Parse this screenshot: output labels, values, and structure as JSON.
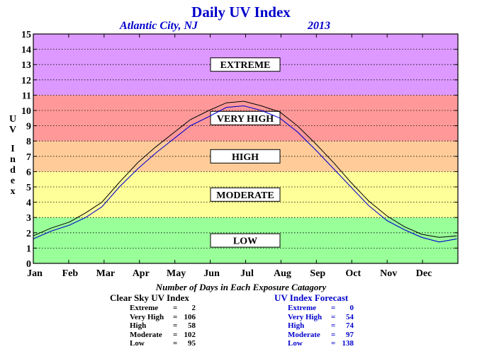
{
  "chart_data": {
    "type": "line",
    "title": "Daily UV Index",
    "subtitle_location": "Atlantic City, NJ",
    "subtitle_year": "2013",
    "ylabel": "UV Index",
    "xlabel": "",
    "ylim": [
      0,
      15
    ],
    "yticks": [
      "0",
      "1",
      "2",
      "3",
      "4",
      "5",
      "6",
      "7",
      "8",
      "9",
      "10",
      "11",
      "12",
      "13",
      "14",
      "15"
    ],
    "months": [
      "Jan",
      "Feb",
      "Mar",
      "Apr",
      "May",
      "Jun",
      "Jul",
      "Aug",
      "Sep",
      "Oct",
      "Nov",
      "Dec"
    ],
    "grid": true,
    "bands": [
      {
        "label": "LOW",
        "from": 0,
        "to": 3,
        "color": "#99ff99"
      },
      {
        "label": "MODERATE",
        "from": 3,
        "to": 6,
        "color": "#ffff99"
      },
      {
        "label": "HIGH",
        "from": 6,
        "to": 8,
        "color": "#ffcc99"
      },
      {
        "label": "VERY HIGH",
        "from": 8,
        "to": 11,
        "color": "#ff9999"
      },
      {
        "label": "EXTREME",
        "from": 11,
        "to": 15,
        "color": "#dd99ff"
      }
    ],
    "series": [
      {
        "name": "Clear Sky UV Index",
        "color": "#000000",
        "points": [
          [
            0,
            1.8
          ],
          [
            15,
            2.3
          ],
          [
            31,
            2.7
          ],
          [
            45,
            3.3
          ],
          [
            59,
            4.0
          ],
          [
            74,
            5.3
          ],
          [
            90,
            6.6
          ],
          [
            105,
            7.6
          ],
          [
            120,
            8.5
          ],
          [
            135,
            9.4
          ],
          [
            151,
            10.0
          ],
          [
            166,
            10.5
          ],
          [
            181,
            10.6
          ],
          [
            196,
            10.3
          ],
          [
            212,
            9.9
          ],
          [
            227,
            9.0
          ],
          [
            243,
            7.8
          ],
          [
            258,
            6.6
          ],
          [
            273,
            5.3
          ],
          [
            288,
            4.1
          ],
          [
            304,
            3.1
          ],
          [
            319,
            2.4
          ],
          [
            334,
            1.9
          ],
          [
            349,
            1.7
          ],
          [
            364,
            1.8
          ]
        ]
      },
      {
        "name": "UV Index Forecast",
        "color": "#0000cc",
        "points": [
          [
            0,
            1.6
          ],
          [
            15,
            2.1
          ],
          [
            31,
            2.5
          ],
          [
            45,
            3.0
          ],
          [
            59,
            3.7
          ],
          [
            74,
            5.0
          ],
          [
            90,
            6.2
          ],
          [
            105,
            7.2
          ],
          [
            120,
            8.1
          ],
          [
            135,
            9.0
          ],
          [
            151,
            9.6
          ],
          [
            166,
            10.2
          ],
          [
            181,
            10.3
          ],
          [
            196,
            10.0
          ],
          [
            212,
            9.5
          ],
          [
            227,
            8.6
          ],
          [
            243,
            7.4
          ],
          [
            258,
            6.2
          ],
          [
            273,
            5.0
          ],
          [
            288,
            3.8
          ],
          [
            304,
            2.8
          ],
          [
            319,
            2.2
          ],
          [
            334,
            1.7
          ],
          [
            349,
            1.4
          ],
          [
            364,
            1.6
          ]
        ]
      }
    ]
  },
  "exposure": {
    "heading": "Number of Days in Each Exposure Catagory",
    "clear_sky": {
      "title": "Clear Sky UV Index",
      "rows": [
        {
          "name": "Extreme",
          "value": "2"
        },
        {
          "name": "Very High",
          "value": "106"
        },
        {
          "name": "High",
          "value": "58"
        },
        {
          "name": "Moderate",
          "value": "102"
        },
        {
          "name": "Low",
          "value": "95"
        }
      ]
    },
    "forecast": {
      "title": "UV Index Forecast",
      "rows": [
        {
          "name": "Extreme",
          "value": "0"
        },
        {
          "name": "Very High",
          "value": "54"
        },
        {
          "name": "High",
          "value": "74"
        },
        {
          "name": "Moderate",
          "value": "97"
        },
        {
          "name": "Low",
          "value": "138"
        }
      ]
    }
  }
}
